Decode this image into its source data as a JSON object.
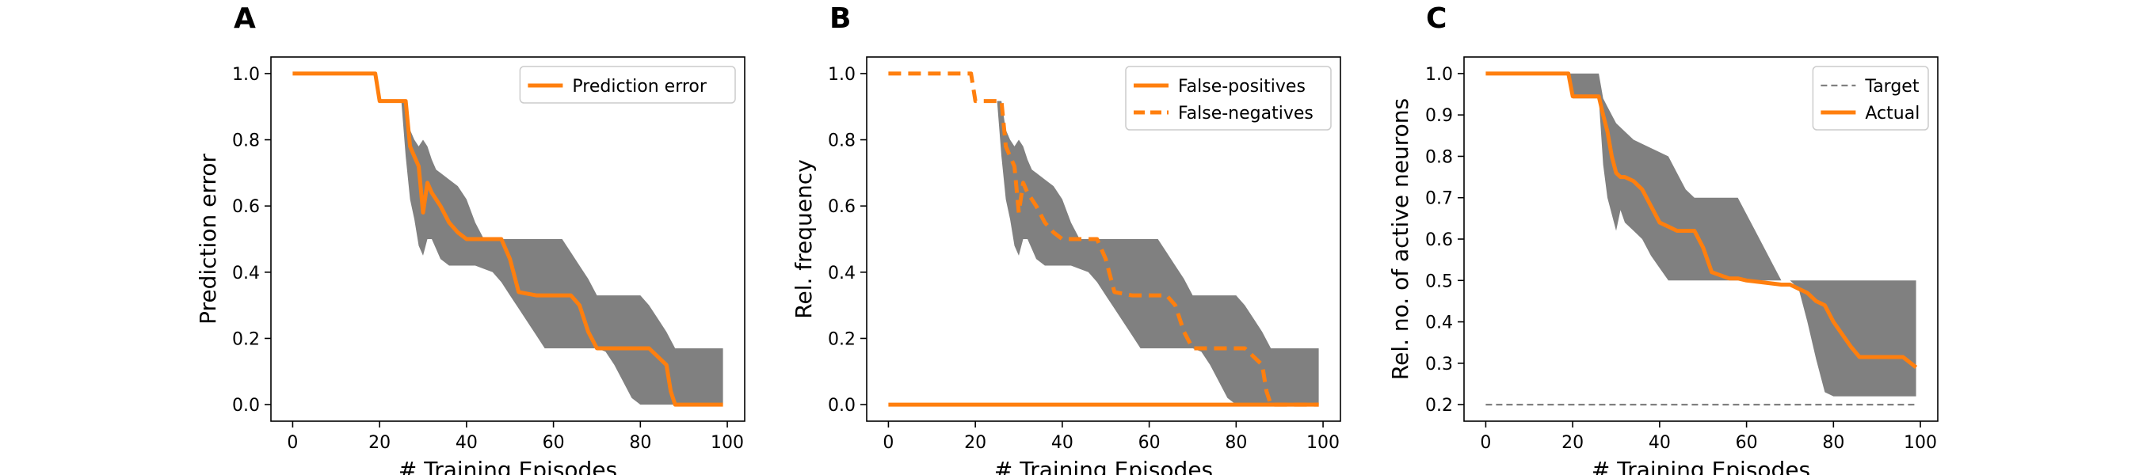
{
  "chart_data": [
    {
      "type": "line",
      "panel_label": "A",
      "xlabel": "# Training Episodes",
      "ylabel": "Prediction error",
      "xlim": [
        -5,
        104
      ],
      "ylim": [
        -0.05,
        1.05
      ],
      "x_ticks": [
        0,
        20,
        40,
        60,
        80,
        100
      ],
      "x_tick_labels": [
        "0",
        "20",
        "40",
        "60",
        "80",
        "100"
      ],
      "y_ticks": [
        0.0,
        0.2,
        0.4,
        0.6,
        0.8,
        1.0
      ],
      "y_tick_labels": [
        "0.0",
        "0.2",
        "0.4",
        "0.6",
        "0.8",
        "1.0"
      ],
      "legend": {
        "position": "top-right",
        "entries": [
          {
            "label": "Prediction error",
            "style": "solid",
            "color": "#ff7f0e"
          }
        ]
      },
      "band": {
        "color": "#808080",
        "x": [
          0,
          19,
          20,
          25,
          26,
          27,
          28,
          29,
          30,
          31,
          32,
          33,
          34,
          36,
          38,
          40,
          42,
          44,
          46,
          48,
          50,
          52,
          54,
          56,
          58,
          60,
          62,
          64,
          66,
          68,
          70,
          72,
          74,
          76,
          78,
          80,
          82,
          84,
          86,
          88,
          90,
          92,
          94,
          96,
          98,
          99
        ],
        "lower": [
          1.0,
          1.0,
          0.917,
          0.917,
          0.75,
          0.62,
          0.56,
          0.48,
          0.45,
          0.5,
          0.5,
          0.47,
          0.44,
          0.42,
          0.42,
          0.42,
          0.42,
          0.41,
          0.4,
          0.37,
          0.33,
          0.29,
          0.25,
          0.21,
          0.17,
          0.17,
          0.17,
          0.17,
          0.17,
          0.17,
          0.17,
          0.16,
          0.12,
          0.07,
          0.02,
          0.0,
          0.0,
          0.0,
          0.0,
          0.0,
          0.0,
          0.0,
          0.0,
          0.0,
          0.0,
          0.0
        ],
        "upper": [
          1.0,
          1.0,
          0.917,
          0.917,
          0.917,
          0.83,
          0.8,
          0.78,
          0.8,
          0.78,
          0.74,
          0.71,
          0.7,
          0.68,
          0.66,
          0.62,
          0.55,
          0.5,
          0.5,
          0.5,
          0.5,
          0.5,
          0.5,
          0.5,
          0.5,
          0.5,
          0.5,
          0.46,
          0.42,
          0.38,
          0.33,
          0.33,
          0.33,
          0.33,
          0.33,
          0.33,
          0.3,
          0.26,
          0.22,
          0.17,
          0.17,
          0.17,
          0.17,
          0.17,
          0.17,
          0.17
        ]
      },
      "series": [
        {
          "label": "Prediction error",
          "color": "#ff7f0e",
          "style": "solid",
          "x": [
            0,
            19,
            20,
            26,
            27,
            28,
            29,
            30,
            31,
            32,
            34,
            36,
            38,
            40,
            44,
            48,
            50,
            52,
            56,
            60,
            64,
            66,
            68,
            70,
            74,
            78,
            82,
            86,
            87,
            88,
            90,
            94,
            99
          ],
          "y": [
            1.0,
            1.0,
            0.917,
            0.917,
            0.78,
            0.75,
            0.72,
            0.58,
            0.67,
            0.64,
            0.6,
            0.55,
            0.52,
            0.5,
            0.5,
            0.5,
            0.44,
            0.34,
            0.33,
            0.33,
            0.33,
            0.3,
            0.22,
            0.17,
            0.17,
            0.17,
            0.17,
            0.12,
            0.04,
            0.0,
            0.0,
            0.0,
            0.0
          ]
        }
      ]
    },
    {
      "type": "line",
      "panel_label": "B",
      "xlabel": "# Training Episodes",
      "ylabel": "Rel. frequency",
      "xlim": [
        -5,
        104
      ],
      "ylim": [
        -0.05,
        1.05
      ],
      "x_ticks": [
        0,
        20,
        40,
        60,
        80,
        100
      ],
      "x_tick_labels": [
        "0",
        "20",
        "40",
        "60",
        "80",
        "100"
      ],
      "y_ticks": [
        0.0,
        0.2,
        0.4,
        0.6,
        0.8,
        1.0
      ],
      "y_tick_labels": [
        "0.0",
        "0.2",
        "0.4",
        "0.6",
        "0.8",
        "1.0"
      ],
      "legend": {
        "position": "top-right",
        "entries": [
          {
            "label": "False-positives",
            "style": "solid",
            "color": "#ff7f0e"
          },
          {
            "label": "False-negatives",
            "style": "dashed",
            "color": "#ff7f0e"
          }
        ]
      },
      "band": {
        "color": "#808080",
        "x": [
          0,
          19,
          20,
          25,
          26,
          27,
          28,
          29,
          30,
          31,
          32,
          33,
          34,
          36,
          38,
          40,
          42,
          44,
          46,
          48,
          50,
          52,
          54,
          56,
          58,
          60,
          62,
          64,
          66,
          68,
          70,
          72,
          74,
          76,
          78,
          80,
          82,
          84,
          86,
          88,
          90,
          92,
          94,
          96,
          98,
          99
        ],
        "lower": [
          1.0,
          1.0,
          0.917,
          0.917,
          0.75,
          0.62,
          0.56,
          0.48,
          0.45,
          0.5,
          0.5,
          0.47,
          0.44,
          0.42,
          0.42,
          0.42,
          0.42,
          0.41,
          0.4,
          0.37,
          0.33,
          0.29,
          0.25,
          0.21,
          0.17,
          0.17,
          0.17,
          0.17,
          0.17,
          0.17,
          0.17,
          0.16,
          0.12,
          0.07,
          0.02,
          0.0,
          0.0,
          0.0,
          0.0,
          0.0,
          0.0,
          0.0,
          0.0,
          0.0,
          0.0,
          0.0
        ],
        "upper": [
          1.0,
          1.0,
          0.917,
          0.917,
          0.917,
          0.83,
          0.8,
          0.78,
          0.8,
          0.78,
          0.74,
          0.71,
          0.7,
          0.68,
          0.66,
          0.62,
          0.55,
          0.5,
          0.5,
          0.5,
          0.5,
          0.5,
          0.5,
          0.5,
          0.5,
          0.5,
          0.5,
          0.46,
          0.42,
          0.38,
          0.33,
          0.33,
          0.33,
          0.33,
          0.33,
          0.33,
          0.3,
          0.26,
          0.22,
          0.17,
          0.17,
          0.17,
          0.17,
          0.17,
          0.17,
          0.17
        ]
      },
      "series": [
        {
          "label": "False-positives",
          "color": "#ff7f0e",
          "style": "solid",
          "x": [
            0,
            99
          ],
          "y": [
            0.0,
            0.0
          ]
        },
        {
          "label": "False-negatives",
          "color": "#ff7f0e",
          "style": "dashed",
          "x": [
            0,
            19,
            20,
            26,
            27,
            28,
            29,
            30,
            31,
            32,
            34,
            36,
            38,
            40,
            44,
            48,
            50,
            52,
            56,
            60,
            64,
            66,
            68,
            70,
            74,
            78,
            82,
            86,
            87,
            88,
            90,
            94,
            99
          ],
          "y": [
            1.0,
            1.0,
            0.917,
            0.917,
            0.78,
            0.75,
            0.72,
            0.58,
            0.67,
            0.64,
            0.6,
            0.55,
            0.52,
            0.5,
            0.5,
            0.5,
            0.44,
            0.34,
            0.33,
            0.33,
            0.33,
            0.3,
            0.22,
            0.17,
            0.17,
            0.17,
            0.17,
            0.12,
            0.04,
            0.0,
            0.0,
            0.0,
            0.0
          ]
        }
      ]
    },
    {
      "type": "line",
      "panel_label": "C",
      "xlabel": "# Training Episodes",
      "ylabel": "Rel. no. of active neurons",
      "xlim": [
        -5,
        104
      ],
      "ylim": [
        0.16,
        1.04
      ],
      "x_ticks": [
        0,
        20,
        40,
        60,
        80,
        100
      ],
      "x_tick_labels": [
        "0",
        "20",
        "40",
        "60",
        "80",
        "100"
      ],
      "y_ticks": [
        0.2,
        0.3,
        0.4,
        0.5,
        0.6,
        0.7,
        0.8,
        0.9,
        1.0
      ],
      "y_tick_labels": [
        "0.2",
        "0.3",
        "0.4",
        "0.5",
        "0.6",
        "0.7",
        "0.8",
        "0.9",
        "1.0"
      ],
      "legend": {
        "position": "top-right",
        "entries": [
          {
            "label": "Target",
            "style": "dashed-gray",
            "color": "#808080"
          },
          {
            "label": "Actual",
            "style": "solid",
            "color": "#ff7f0e"
          }
        ]
      },
      "band": {
        "color": "#808080",
        "x": [
          0,
          19,
          20,
          26,
          27,
          28,
          29,
          30,
          31,
          32,
          34,
          36,
          38,
          40,
          42,
          44,
          46,
          48,
          50,
          52,
          54,
          56,
          58,
          60,
          62,
          64,
          66,
          68,
          70,
          72,
          74,
          76,
          78,
          80,
          84,
          88,
          92,
          96,
          99
        ],
        "lower": [
          1.0,
          1.0,
          0.94,
          0.94,
          0.78,
          0.7,
          0.66,
          0.62,
          0.67,
          0.64,
          0.62,
          0.6,
          0.56,
          0.53,
          0.5,
          0.5,
          0.5,
          0.5,
          0.5,
          0.5,
          0.5,
          0.5,
          0.5,
          0.5,
          0.5,
          0.5,
          0.5,
          0.5,
          0.5,
          0.48,
          0.4,
          0.31,
          0.23,
          0.22,
          0.22,
          0.22,
          0.22,
          0.22,
          0.22
        ],
        "upper": [
          1.0,
          1.0,
          1.0,
          1.0,
          0.94,
          0.92,
          0.9,
          0.88,
          0.87,
          0.86,
          0.84,
          0.83,
          0.82,
          0.81,
          0.8,
          0.76,
          0.72,
          0.7,
          0.7,
          0.7,
          0.7,
          0.7,
          0.7,
          0.66,
          0.62,
          0.58,
          0.54,
          0.5,
          0.5,
          0.5,
          0.5,
          0.5,
          0.5,
          0.5,
          0.5,
          0.5,
          0.5,
          0.5,
          0.5
        ]
      },
      "series": [
        {
          "label": "Target",
          "color": "#808080",
          "style": "dashed",
          "x": [
            0,
            99
          ],
          "y": [
            0.2,
            0.2
          ]
        },
        {
          "label": "Actual",
          "color": "#ff7f0e",
          "style": "solid",
          "x": [
            0,
            19,
            20,
            26,
            27,
            28,
            29,
            30,
            31,
            32,
            34,
            36,
            38,
            40,
            42,
            44,
            48,
            50,
            52,
            56,
            58,
            60,
            64,
            68,
            70,
            72,
            74,
            76,
            78,
            80,
            82,
            84,
            86,
            88,
            92,
            96,
            99
          ],
          "y": [
            1.0,
            1.0,
            0.945,
            0.945,
            0.9,
            0.86,
            0.8,
            0.76,
            0.75,
            0.75,
            0.74,
            0.72,
            0.68,
            0.64,
            0.63,
            0.62,
            0.62,
            0.58,
            0.52,
            0.505,
            0.505,
            0.5,
            0.495,
            0.49,
            0.49,
            0.48,
            0.47,
            0.45,
            0.44,
            0.4,
            0.37,
            0.34,
            0.315,
            0.315,
            0.315,
            0.315,
            0.29
          ]
        }
      ]
    }
  ]
}
